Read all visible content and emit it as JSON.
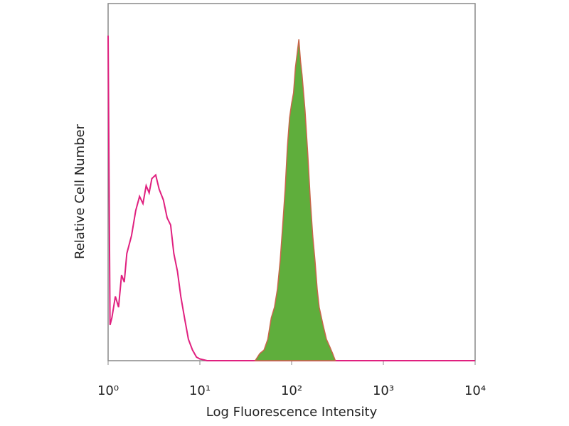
{
  "chart_data": {
    "type": "histogram-overlay",
    "xlabel": "Log Fluorescence Intensity",
    "ylabel": "Relative Cell Number",
    "xscale": "log",
    "xlim": [
      1,
      10000
    ],
    "xticks": [
      {
        "value": 1,
        "label": "10⁰"
      },
      {
        "value": 10,
        "label": "10¹"
      },
      {
        "value": 100,
        "label": "10²"
      },
      {
        "value": 1000,
        "label": "10³"
      },
      {
        "value": 10000,
        "label": "10⁴"
      }
    ],
    "ylim": [
      0,
      100
    ],
    "series": [
      {
        "color": "#e0207f",
        "fill": false,
        "x": [
          1,
          1.05,
          1.1,
          1.2,
          1.3,
          1.4,
          1.5,
          1.6,
          1.8,
          2.0,
          2.2,
          2.4,
          2.6,
          2.8,
          3.0,
          3.3,
          3.6,
          4.0,
          4.4,
          4.8,
          5.2,
          5.7,
          6.2,
          6.8,
          7.5,
          8.3,
          9.2,
          10,
          12,
          10000
        ],
        "values": [
          91,
          10,
          12,
          18,
          15,
          24,
          22,
          30,
          35,
          42,
          46,
          44,
          49,
          47,
          51,
          52,
          48,
          45,
          40,
          38,
          30,
          25,
          18,
          12,
          6,
          3,
          1,
          0.5,
          0,
          0
        ]
      },
      {
        "color": "#5fae3c",
        "edge_color": "#c8664a",
        "fill": true,
        "x": [
          40,
          45,
          50,
          55,
          60,
          65,
          70,
          75,
          80,
          85,
          90,
          95,
          100,
          105,
          110,
          115,
          120,
          125,
          130,
          140,
          150,
          160,
          170,
          180,
          190,
          200,
          220,
          240,
          260,
          280,
          300
        ],
        "values": [
          0,
          2,
          3,
          6,
          12,
          15,
          20,
          28,
          38,
          48,
          60,
          68,
          72,
          75,
          82,
          86,
          90,
          84,
          80,
          70,
          58,
          45,
          35,
          28,
          20,
          15,
          10,
          6,
          4,
          2,
          0
        ]
      }
    ]
  }
}
